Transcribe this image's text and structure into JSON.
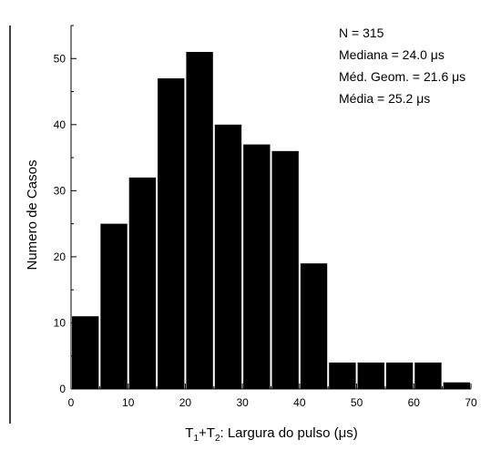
{
  "chart_data": {
    "type": "bar",
    "bin_width": 5,
    "bin_starts": [
      0,
      5,
      10,
      15,
      20,
      25,
      30,
      35,
      40,
      45,
      50,
      55,
      60,
      65
    ],
    "values": [
      11,
      25,
      32,
      47,
      51,
      40,
      37,
      36,
      19,
      4,
      4,
      4,
      4,
      1
    ],
    "xlim": [
      0,
      70
    ],
    "ylim": [
      0,
      55
    ],
    "xticks": [
      0,
      10,
      20,
      30,
      40,
      50,
      60,
      70
    ],
    "yticks": [
      0,
      10,
      20,
      30,
      40,
      50
    ],
    "ylabel": "Numero de Casos",
    "xlabel": {
      "t1": "T",
      "sub1": "1",
      "plus": "+T",
      "sub2": "2",
      "rest": ": Largura do pulso (μs)"
    },
    "annotations": [
      "N = 315",
      "Mediana = 24.0 μs",
      "Méd. Geom. = 21.6 μs",
      "Média = 25.2 μs"
    ],
    "bar_color": "#000000",
    "grid": false
  }
}
